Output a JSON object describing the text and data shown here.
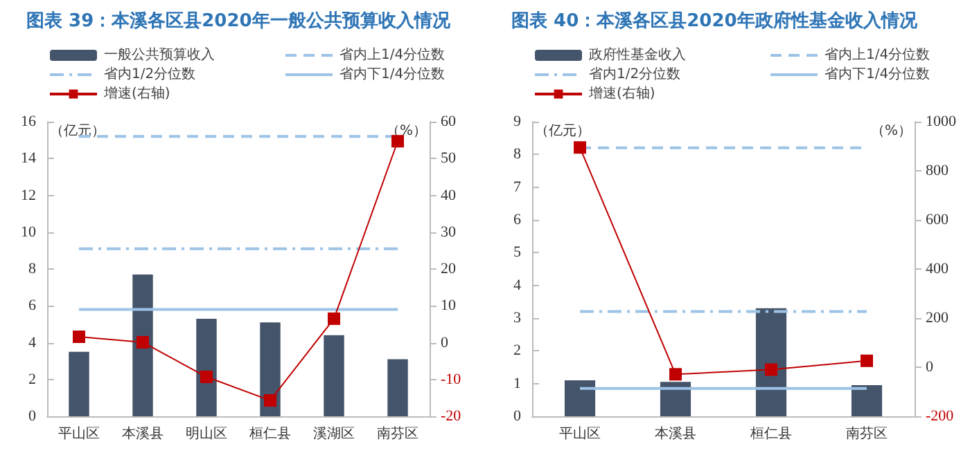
{
  "chart_data": [
    {
      "type": "bar",
      "title": "图表 39：本溪各区县2020年一般公共预算收入情况",
      "ylabel": "（亿元）",
      "y2label": "（%）",
      "categories": [
        "平山区",
        "本溪县",
        "明山区",
        "桓仁县",
        "溪湖区",
        "南芬区"
      ],
      "series": [
        {
          "name": "一般公共预算收入",
          "type": "bar",
          "color": "#44546a",
          "values": [
            3.5,
            7.7,
            5.3,
            5.1,
            4.4,
            3.1
          ]
        },
        {
          "name": "增速(右轴)",
          "type": "line",
          "axis": "y2",
          "color": "#c00000",
          "marker": "square",
          "values": [
            1.6,
            0.1,
            -9.3,
            -15.7,
            6.5,
            54.7
          ]
        }
      ],
      "ref_lines": [
        {
          "axis": "y",
          "value": 15.2,
          "label": "省内上1/4分位数",
          "color": "#9dc3e6",
          "line_style": "dashed"
        },
        {
          "axis": "y",
          "value": 9.1,
          "label": "省内1/2分位数",
          "color": "#9dc3e6",
          "line_style": "dashdot"
        },
        {
          "axis": "y",
          "value": 5.8,
          "label": "省内下1/4分位数",
          "color": "#9dc3e6",
          "line_style": "solid"
        }
      ],
      "ylim": [
        0,
        16
      ],
      "yticks": [
        0,
        2,
        4,
        6,
        8,
        10,
        12,
        14,
        16
      ],
      "y2lim": [
        -20,
        60
      ],
      "y2ticks": [
        -20,
        -10,
        0,
        10,
        20,
        30,
        40,
        50,
        60
      ],
      "grid": false,
      "legend": "top"
    },
    {
      "type": "bar",
      "title": "图表 40：本溪各区县2020年政府性基金收入情况",
      "ylabel": "（亿元）",
      "y2label": "（%）",
      "categories": [
        "平山区",
        "本溪县",
        "桓仁县",
        "南芬区"
      ],
      "series": [
        {
          "name": "政府性基金收入",
          "type": "bar",
          "color": "#44546a",
          "values": [
            1.1,
            1.05,
            3.3,
            0.95
          ]
        },
        {
          "name": "增速(右轴)",
          "type": "line",
          "axis": "y2",
          "color": "#c00000",
          "marker": "square",
          "values": [
            895,
            -29,
            -10,
            26
          ]
        }
      ],
      "ref_lines": [
        {
          "axis": "y",
          "value": 8.2,
          "label": "省内上1/4分位数",
          "color": "#9dc3e6",
          "line_style": "dashed"
        },
        {
          "axis": "y",
          "value": 3.2,
          "label": "省内1/2分位数",
          "color": "#9dc3e6",
          "line_style": "dashdot"
        },
        {
          "axis": "y",
          "value": 0.85,
          "label": "省内下1/4分位数",
          "color": "#9dc3e6",
          "line_style": "solid"
        }
      ],
      "ylim": [
        0,
        9
      ],
      "yticks": [
        0,
        1,
        2,
        3,
        4,
        5,
        6,
        7,
        8,
        9
      ],
      "y2lim": [
        -200,
        1000
      ],
      "y2ticks": [
        -200,
        0,
        200,
        400,
        600,
        800,
        1000
      ],
      "grid": false,
      "legend": "top"
    }
  ]
}
